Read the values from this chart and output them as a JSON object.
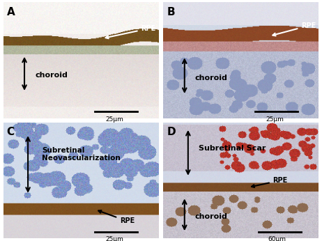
{
  "panel_labels": [
    "A",
    "B",
    "C",
    "D"
  ],
  "rpe_labels": [
    "RPE",
    "RPE",
    "RPE",
    "RPE"
  ],
  "choroid_labels": [
    "choroid",
    "choroid",
    "",
    "choroid"
  ],
  "subretinal_labels": [
    "",
    "",
    "Subretinal\nNeovascularization",
    "Subretinal Scar"
  ],
  "scale_bars": [
    "25μm",
    "25μm",
    "25μm",
    "60μm"
  ],
  "border_color": "#333333",
  "bg_color": "#ffffff",
  "label_color": "#000000",
  "white_text": "#ffffff",
  "arrow_color_white": "#ffffff",
  "arrow_color_black": "#000000",
  "scale_bar_color": "#000000"
}
